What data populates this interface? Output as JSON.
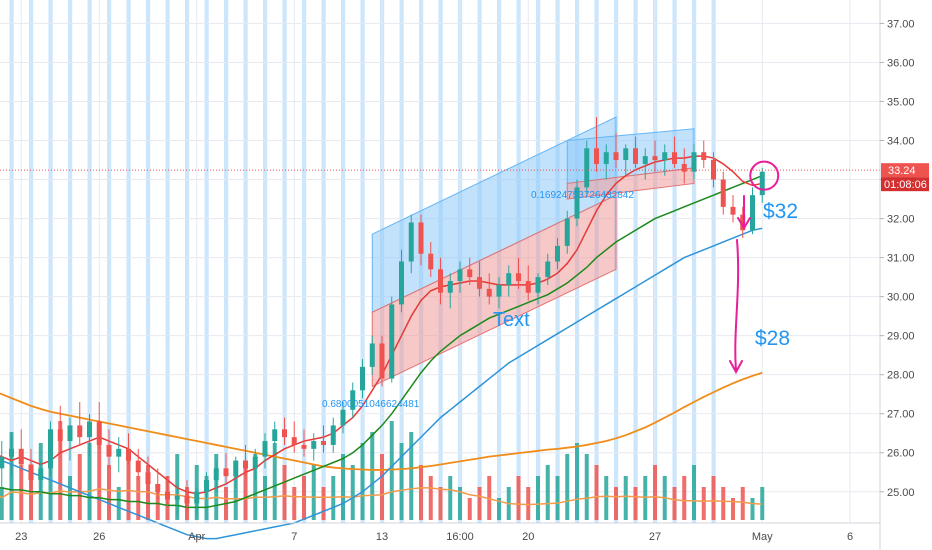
{
  "chart_data": {
    "type": "candlestick",
    "y_axis": {
      "ticks": [
        "25.00",
        "26.00",
        "27.00",
        "28.00",
        "29.00",
        "30.00",
        "31.00",
        "32.00",
        "33.00",
        "34.00",
        "35.00",
        "36.00",
        "37.00"
      ],
      "range": [
        24.2,
        37.6
      ]
    },
    "x_axis": {
      "ticks": [
        {
          "label": "23",
          "bar": 3
        },
        {
          "label": "26",
          "bar": 11
        },
        {
          "label": "Apr",
          "bar": 21
        },
        {
          "label": "7",
          "bar": 31
        },
        {
          "label": "13",
          "bar": 40
        },
        {
          "label": "16:00",
          "bar": 48
        },
        {
          "label": "20",
          "bar": 55
        },
        {
          "label": "27",
          "bar": 68
        },
        {
          "label": "May",
          "bar": 79
        },
        {
          "label": "6",
          "bar": 88
        }
      ]
    },
    "last_price": {
      "label": "33.24",
      "value": 33.24,
      "color": "#ef5350"
    },
    "countdown": {
      "label": "01:08:06",
      "color": "#d32f2f"
    },
    "annotations": {
      "target_1": "$32",
      "target_2": "$28",
      "text_label": "Text",
      "fib_label_1": "0.6800051046624481",
      "fib_label_2": "0.16924753726432842"
    },
    "colors": {
      "up": "#26a69a",
      "down": "#ef5350",
      "ma_red": "#e53935",
      "ma_green": "#1b8a1b",
      "ma_blue": "#2e93d9",
      "ma_orange": "#f08c1a",
      "vol_ma": "#f39c4a",
      "session_band": "#bbdefb",
      "channel_blue": "#90caf9",
      "channel_red": "#ef9a9a",
      "marker_magenta": "#e91e9a",
      "grid": "#f0f3fa"
    },
    "candles": [
      [
        25.8,
        26.2,
        25.2,
        25.6
      ],
      [
        25.6,
        26.3,
        25.1,
        25.9
      ],
      [
        25.9,
        26.5,
        25.4,
        26.1
      ],
      [
        26.1,
        26.6,
        25.5,
        25.7
      ],
      [
        25.7,
        26.1,
        25.0,
        25.3
      ],
      [
        25.3,
        25.8,
        24.9,
        25.6
      ],
      [
        25.6,
        26.8,
        25.4,
        26.6
      ],
      [
        26.6,
        27.2,
        26.0,
        26.3
      ],
      [
        26.3,
        26.9,
        25.8,
        26.7
      ],
      [
        26.7,
        27.3,
        26.2,
        26.4
      ],
      [
        26.4,
        27.0,
        25.9,
        26.8
      ],
      [
        26.8,
        27.3,
        26.1,
        26.2
      ],
      [
        26.2,
        26.6,
        25.6,
        25.9
      ],
      [
        25.9,
        26.4,
        25.5,
        26.1
      ],
      [
        26.1,
        26.5,
        25.7,
        25.8
      ],
      [
        25.8,
        26.1,
        25.3,
        25.5
      ],
      [
        25.5,
        25.9,
        25.0,
        25.2
      ],
      [
        25.2,
        25.6,
        24.8,
        25.0
      ],
      [
        25.0,
        25.4,
        24.6,
        24.8
      ],
      [
        24.8,
        25.2,
        24.4,
        24.9
      ],
      [
        24.9,
        25.3,
        24.5,
        24.7
      ],
      [
        24.7,
        25.1,
        24.4,
        25.0
      ],
      [
        25.0,
        25.5,
        24.8,
        25.3
      ],
      [
        25.3,
        25.8,
        25.0,
        25.6
      ],
      [
        25.6,
        26.0,
        25.2,
        25.4
      ],
      [
        25.4,
        25.9,
        25.1,
        25.8
      ],
      [
        25.8,
        26.2,
        25.4,
        25.6
      ],
      [
        25.6,
        26.1,
        25.3,
        25.9
      ],
      [
        25.9,
        26.5,
        25.6,
        26.3
      ],
      [
        26.3,
        26.8,
        26.0,
        26.6
      ],
      [
        26.6,
        26.9,
        26.2,
        26.4
      ],
      [
        26.4,
        26.8,
        26.0,
        26.2
      ],
      [
        26.2,
        26.6,
        25.9,
        26.1
      ],
      [
        26.1,
        26.5,
        25.8,
        26.3
      ],
      [
        26.3,
        26.7,
        26.0,
        26.2
      ],
      [
        26.2,
        26.9,
        26.0,
        26.7
      ],
      [
        26.7,
        27.3,
        26.5,
        27.1
      ],
      [
        27.1,
        27.8,
        26.9,
        27.6
      ],
      [
        27.6,
        28.4,
        27.4,
        28.2
      ],
      [
        28.2,
        29.0,
        28.0,
        28.8
      ],
      [
        28.8,
        29.0,
        27.7,
        27.9
      ],
      [
        27.9,
        30.0,
        27.8,
        29.8
      ],
      [
        29.8,
        31.2,
        29.6,
        30.9
      ],
      [
        30.9,
        32.1,
        30.6,
        31.9
      ],
      [
        31.9,
        32.1,
        30.8,
        31.1
      ],
      [
        31.1,
        31.4,
        30.5,
        30.7
      ],
      [
        30.7,
        31.0,
        29.8,
        30.1
      ],
      [
        30.1,
        30.6,
        29.7,
        30.4
      ],
      [
        30.4,
        30.9,
        30.1,
        30.7
      ],
      [
        30.7,
        31.0,
        30.3,
        30.5
      ],
      [
        30.5,
        30.9,
        30.0,
        30.2
      ],
      [
        30.2,
        30.6,
        29.8,
        30.0
      ],
      [
        30.0,
        30.5,
        29.7,
        30.3
      ],
      [
        30.3,
        30.8,
        30.0,
        30.6
      ],
      [
        30.6,
        31.0,
        30.2,
        30.4
      ],
      [
        30.4,
        30.8,
        29.9,
        30.1
      ],
      [
        30.1,
        30.6,
        29.8,
        30.5
      ],
      [
        30.5,
        31.1,
        30.3,
        30.9
      ],
      [
        30.9,
        31.5,
        30.7,
        31.3
      ],
      [
        31.3,
        32.2,
        31.1,
        32.0
      ],
      [
        32.0,
        33.0,
        31.8,
        32.8
      ],
      [
        32.8,
        34.0,
        32.6,
        33.8
      ],
      [
        33.8,
        34.6,
        33.2,
        33.4
      ],
      [
        33.4,
        33.9,
        33.0,
        33.7
      ],
      [
        33.7,
        34.2,
        33.3,
        33.5
      ],
      [
        33.5,
        33.9,
        33.1,
        33.8
      ],
      [
        33.8,
        34.1,
        33.3,
        33.4
      ],
      [
        33.4,
        33.8,
        33.0,
        33.6
      ],
      [
        33.6,
        34.0,
        33.2,
        33.5
      ],
      [
        33.5,
        33.9,
        33.1,
        33.7
      ],
      [
        33.7,
        34.1,
        33.3,
        33.4
      ],
      [
        33.4,
        33.8,
        32.9,
        33.2
      ],
      [
        33.2,
        33.9,
        33.0,
        33.7
      ],
      [
        33.7,
        34.0,
        33.3,
        33.5
      ],
      [
        33.5,
        33.7,
        32.8,
        33.0
      ],
      [
        33.0,
        33.2,
        32.1,
        32.3
      ],
      [
        32.3,
        32.6,
        31.9,
        32.1
      ],
      [
        32.1,
        32.3,
        31.5,
        31.7
      ],
      [
        31.7,
        32.8,
        31.6,
        32.6
      ],
      [
        32.6,
        33.3,
        32.4,
        33.2
      ]
    ],
    "ma_red": [
      26.0,
      25.9,
      25.8,
      25.9,
      25.8,
      25.7,
      25.8,
      26.0,
      26.1,
      26.2,
      26.3,
      26.4,
      26.3,
      26.2,
      26.1,
      25.9,
      25.7,
      25.5,
      25.3,
      25.1,
      25.0,
      24.95,
      25.0,
      25.1,
      25.2,
      25.35,
      25.5,
      25.6,
      25.8,
      25.95,
      26.1,
      26.2,
      26.3,
      26.35,
      26.4,
      26.5,
      26.7,
      26.9,
      27.2,
      27.6,
      28.0,
      28.5,
      29.0,
      29.5,
      29.9,
      30.15,
      30.25,
      30.3,
      30.35,
      30.4,
      30.4,
      30.35,
      30.3,
      30.3,
      30.3,
      30.3,
      30.35,
      30.45,
      30.6,
      30.85,
      31.2,
      31.7,
      32.2,
      32.6,
      32.9,
      33.1,
      33.25,
      33.35,
      33.45,
      33.5,
      33.55,
      33.55,
      33.6,
      33.6,
      33.55,
      33.4,
      33.2,
      32.95,
      32.85,
      32.9
    ],
    "ma_green": [
      25.1,
      25.1,
      25.05,
      25.05,
      25.0,
      25.0,
      24.95,
      24.95,
      24.9,
      24.9,
      24.85,
      24.85,
      24.8,
      24.8,
      24.75,
      24.75,
      24.7,
      24.7,
      24.65,
      24.65,
      24.6,
      24.6,
      24.6,
      24.65,
      24.7,
      24.75,
      24.85,
      24.95,
      25.05,
      25.15,
      25.25,
      25.35,
      25.45,
      25.55,
      25.65,
      25.75,
      25.85,
      26.0,
      26.2,
      26.45,
      26.7,
      27.0,
      27.35,
      27.7,
      28.05,
      28.35,
      28.6,
      28.8,
      29.0,
      29.15,
      29.3,
      29.45,
      29.55,
      29.65,
      29.75,
      29.85,
      29.95,
      30.05,
      30.2,
      30.35,
      30.55,
      30.75,
      31.0,
      31.2,
      31.4,
      31.55,
      31.7,
      31.85,
      32.0,
      32.1,
      32.2,
      32.3,
      32.4,
      32.5,
      32.6,
      32.7,
      32.8,
      32.9,
      33.0,
      33.1
    ],
    "ma_blue": [
      25.9,
      25.8,
      25.7,
      25.6,
      25.5,
      25.4,
      25.3,
      25.2,
      25.1,
      25.0,
      24.9,
      24.8,
      24.7,
      24.6,
      24.5,
      24.4,
      24.3,
      24.2,
      24.1,
      24.0,
      23.9,
      23.85,
      23.8,
      23.8,
      23.85,
      23.9,
      23.95,
      24.0,
      24.05,
      24.1,
      24.15,
      24.2,
      24.3,
      24.4,
      24.5,
      24.6,
      24.7,
      24.85,
      25.0,
      25.2,
      25.4,
      25.65,
      25.9,
      26.15,
      26.4,
      26.65,
      26.9,
      27.1,
      27.3,
      27.5,
      27.7,
      27.9,
      28.1,
      28.3,
      28.45,
      28.6,
      28.75,
      28.9,
      29.05,
      29.2,
      29.35,
      29.5,
      29.65,
      29.8,
      29.95,
      30.1,
      30.25,
      30.4,
      30.55,
      30.7,
      30.85,
      31.0,
      31.1,
      31.2,
      31.3,
      31.4,
      31.5,
      31.6,
      31.7,
      31.75
    ],
    "ma_orange": [
      27.6,
      27.5,
      27.4,
      27.3,
      27.2,
      27.12,
      27.05,
      27.0,
      26.95,
      26.9,
      26.85,
      26.8,
      26.75,
      26.7,
      26.65,
      26.6,
      26.55,
      26.5,
      26.45,
      26.4,
      26.35,
      26.3,
      26.25,
      26.2,
      26.15,
      26.1,
      26.05,
      26.0,
      25.95,
      25.9,
      25.85,
      25.8,
      25.75,
      25.7,
      25.65,
      25.62,
      25.6,
      25.58,
      25.57,
      25.56,
      25.56,
      25.57,
      25.58,
      25.6,
      25.63,
      25.66,
      25.7,
      25.74,
      25.78,
      25.82,
      25.86,
      25.9,
      25.93,
      25.96,
      25.99,
      26.02,
      26.05,
      26.08,
      26.1,
      26.13,
      26.16,
      26.2,
      26.25,
      26.3,
      26.37,
      26.45,
      26.55,
      26.65,
      26.77,
      26.9,
      27.03,
      27.17,
      27.3,
      27.43,
      27.55,
      27.67,
      27.78,
      27.88,
      27.97,
      28.05
    ],
    "volume": [
      0.6,
      0.3,
      0.8,
      0.5,
      0.4,
      0.7,
      0.5,
      0.9,
      0.4,
      0.6,
      0.7,
      0.8,
      0.5,
      0.3,
      0.6,
      0.4,
      0.5,
      0.3,
      0.4,
      0.6,
      0.3,
      0.5,
      0.4,
      0.6,
      0.3,
      0.4,
      0.5,
      0.6,
      0.4,
      0.7,
      0.5,
      0.3,
      0.4,
      0.5,
      0.3,
      0.4,
      0.6,
      0.5,
      0.7,
      0.8,
      0.6,
      0.9,
      0.7,
      0.8,
      0.5,
      0.4,
      0.3,
      0.4,
      0.3,
      0.2,
      0.3,
      0.4,
      0.2,
      0.3,
      0.4,
      0.3,
      0.4,
      0.5,
      0.4,
      0.6,
      0.7,
      0.6,
      0.5,
      0.4,
      0.3,
      0.4,
      0.3,
      0.4,
      0.5,
      0.4,
      0.3,
      0.4,
      0.5,
      0.3,
      0.4,
      0.3,
      0.2,
      0.3,
      0.2,
      0.3
    ]
  }
}
